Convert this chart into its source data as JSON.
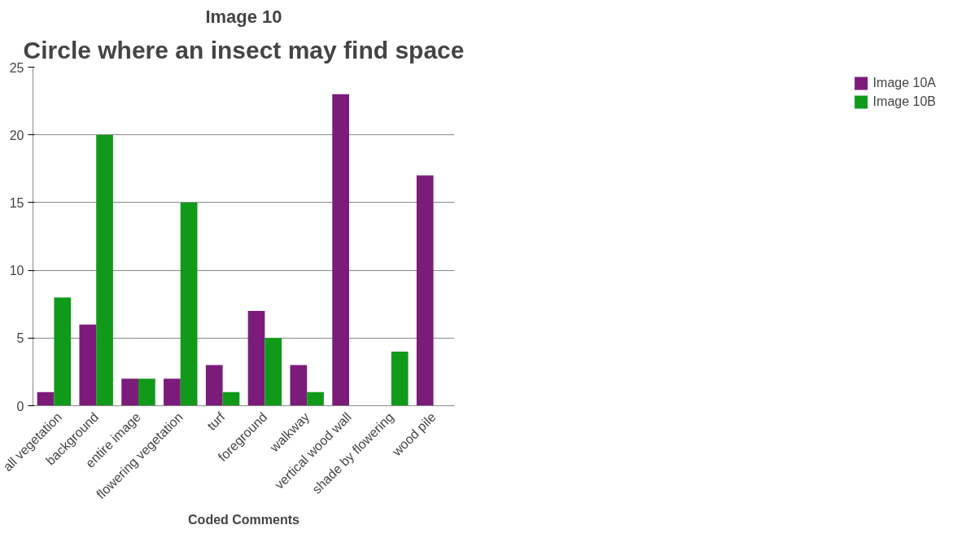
{
  "chart_data": {
    "type": "bar",
    "title": "Image 10",
    "subtitle": "Circle where an insect may find space",
    "xlabel": "Coded Comments",
    "categories": [
      "all vegetation",
      "background",
      "entire image",
      "flowering vegetation",
      "turf",
      "foreground",
      "walkway",
      "vertical wood wall",
      "shade by flowering",
      "wood pile"
    ],
    "series": [
      {
        "name": "Image 10A",
        "color": "#7b1c7a",
        "values": [
          1,
          6,
          2,
          2,
          3,
          7,
          3,
          23,
          0,
          17
        ]
      },
      {
        "name": "Image 10B",
        "color": "#119a19",
        "values": [
          8,
          20,
          2,
          15,
          1,
          5,
          1,
          0,
          4,
          0
        ]
      }
    ],
    "ylim": [
      0,
      25
    ],
    "yticks": [
      0,
      5,
      10,
      15,
      20,
      25
    ],
    "grid": "y",
    "legend": "right"
  }
}
